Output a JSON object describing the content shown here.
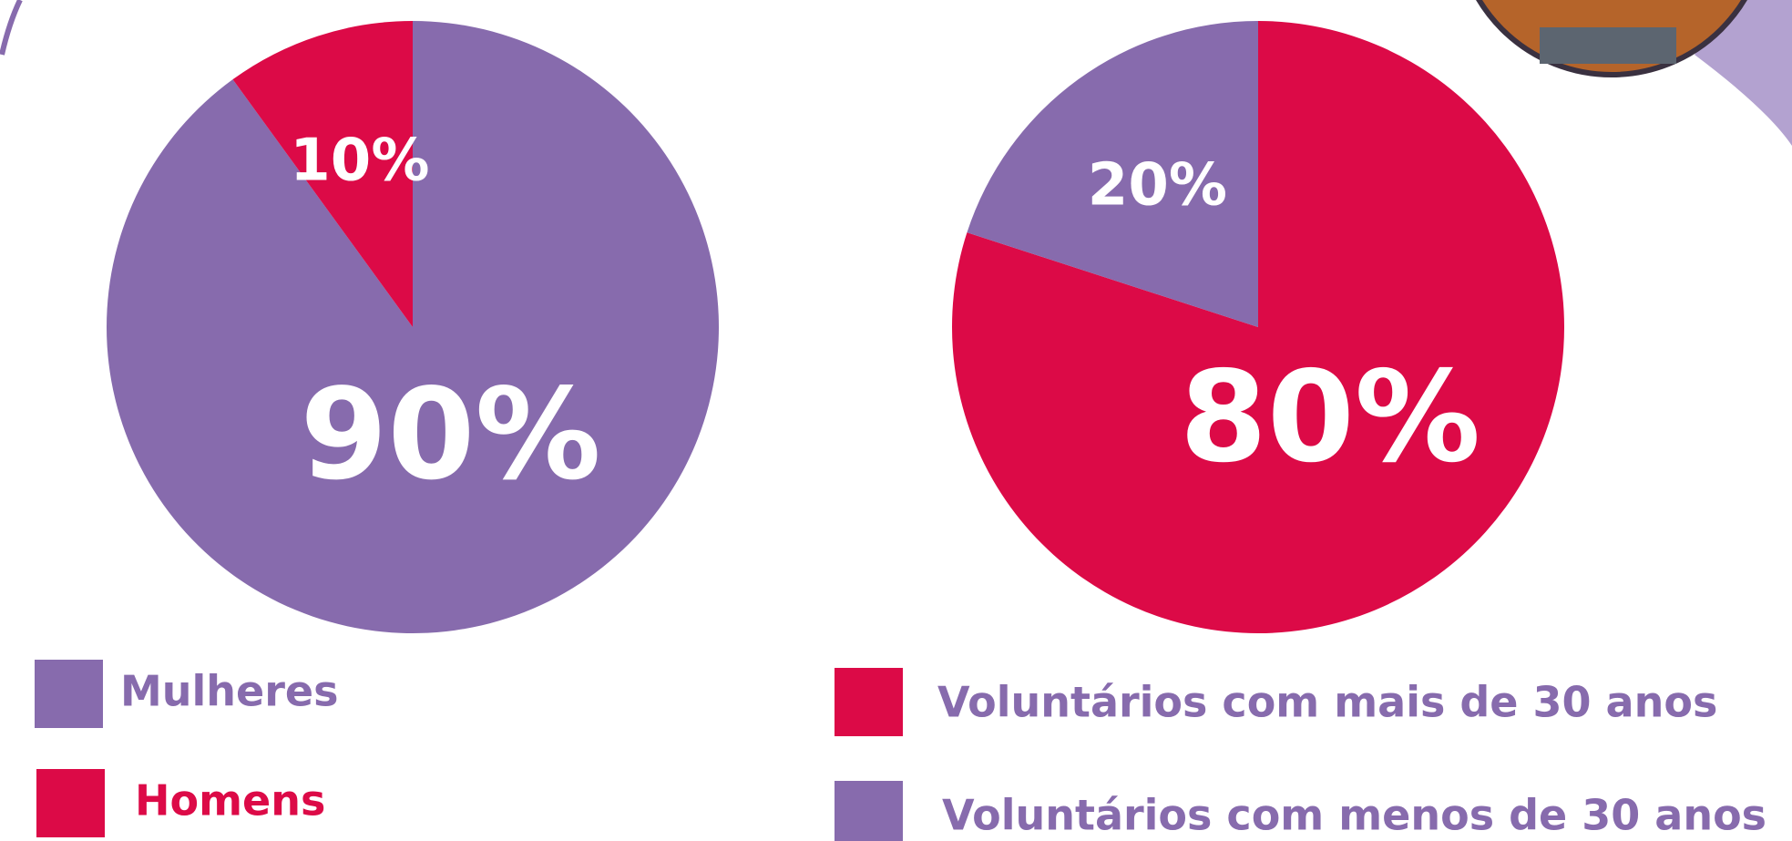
{
  "chart_data": [
    {
      "type": "pie",
      "categories": [
        "Mulheres",
        "Homens"
      ],
      "values": [
        90,
        10
      ],
      "value_labels": [
        "90%",
        "10%"
      ],
      "colors": [
        "#876bad",
        "#dc0a47"
      ],
      "legend_text_colors": [
        "#876bad",
        "#dc0a47"
      ]
    },
    {
      "type": "pie",
      "categories": [
        "Voluntários com mais de 30 anos",
        "Voluntários com menos de 30 anos"
      ],
      "values": [
        80,
        20
      ],
      "value_labels": [
        "80%",
        "20%"
      ],
      "colors": [
        "#dc0a47",
        "#876bad"
      ],
      "legend_text_colors": [
        "#876bad",
        "#876bad"
      ]
    }
  ]
}
